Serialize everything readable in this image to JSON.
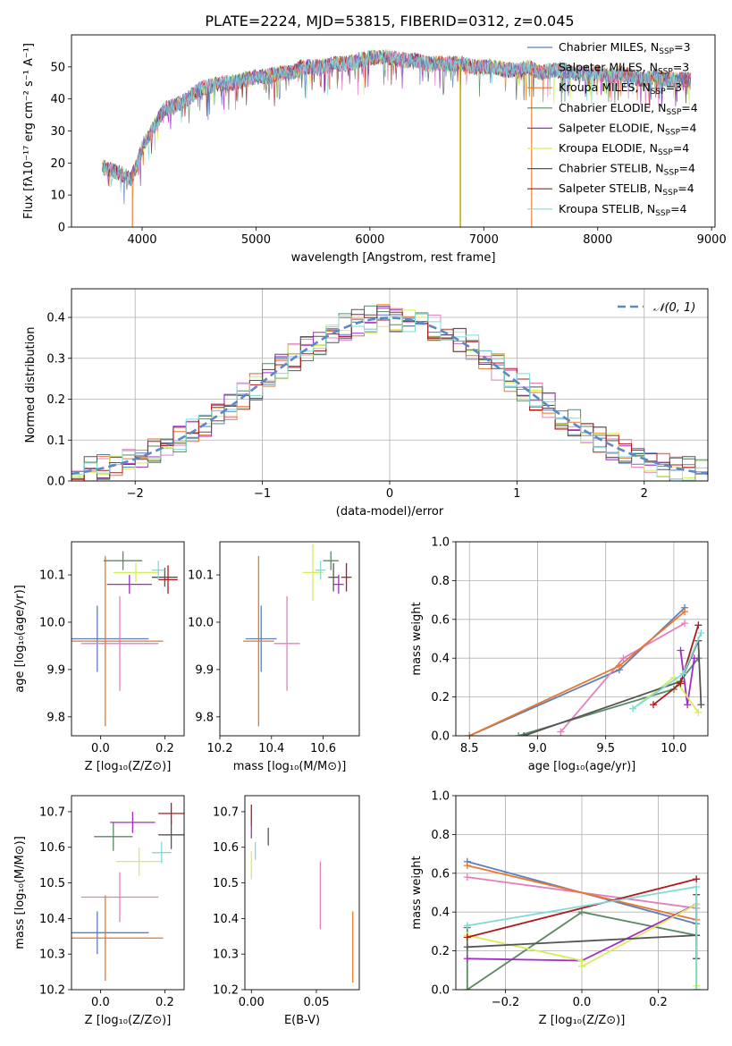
{
  "figure_title": "PLATE=2224, MJD=53815, FIBERID=0312, z=0.045",
  "model_colors": [
    "#5b7fbf",
    "#e47fbf",
    "#e8782a",
    "#5a8a63",
    "#a12dc4",
    "#d6ee5a",
    "#555555",
    "#b01a1a",
    "#7fdad8"
  ],
  "chart_data": [
    {
      "id": "spectrum",
      "type": "line",
      "xlabel": "wavelength [Angstrom, rest frame]",
      "ylabel": "Flux [fλ10⁻¹⁷ erg cm⁻² s⁻¹ A⁻¹]",
      "xlim": [
        3380,
        9030
      ],
      "ylim": [
        0,
        60
      ],
      "xticks": [
        4000,
        5000,
        6000,
        7000,
        8000,
        9000
      ],
      "yticks": [
        0,
        10,
        20,
        30,
        40,
        50
      ],
      "grid": false,
      "legend_position": "top-right",
      "legend": [
        {
          "name": "Chabrier MILES, N",
          "sub": "SSP",
          "tail": "=3",
          "color": "#5b7fbf"
        },
        {
          "name": "Salpeter MILES, N",
          "sub": "SSP",
          "tail": "=3",
          "color": "#e47fbf"
        },
        {
          "name": "Kroupa MILES, N",
          "sub": "SSP",
          "tail": "=3",
          "color": "#e8782a"
        },
        {
          "name": "Chabrier ELODIE, N",
          "sub": "SSP",
          "tail": "=4",
          "color": "#5a8a63"
        },
        {
          "name": "Salpeter ELODIE, N",
          "sub": "SSP",
          "tail": "=4",
          "color": "#a12dc4"
        },
        {
          "name": "Kroupa ELODIE, N",
          "sub": "SSP",
          "tail": "=4",
          "color": "#d6ee5a"
        },
        {
          "name": "Chabrier STELIB, N",
          "sub": "SSP",
          "tail": "=4",
          "color": "#555555"
        },
        {
          "name": "Salpeter STELIB, N",
          "sub": "SSP",
          "tail": "=4",
          "color": "#b01a1a"
        },
        {
          "name": "Kroupa STELIB, N",
          "sub": "SSP",
          "tail": "=4",
          "color": "#7fdad8"
        }
      ],
      "continuum": {
        "x": [
          3650,
          3700,
          3800,
          3900,
          3950,
          4000,
          4100,
          4200,
          4300,
          4400,
          4500,
          4600,
          4700,
          4800,
          4900,
          5000,
          5100,
          5200,
          5300,
          5400,
          5500,
          5600,
          5700,
          5800,
          5900,
          6000,
          6100,
          6200,
          6300,
          6400,
          6500,
          6600,
          6700,
          6800,
          6900,
          7000,
          7100,
          7200,
          7300,
          7400,
          7500,
          7600,
          7700,
          7800,
          7900,
          8000,
          8100,
          8200,
          8300,
          8400,
          8500,
          8600,
          8700,
          8800
        ],
        "y": [
          19,
          18,
          17,
          15,
          19,
          25,
          31,
          37,
          38,
          40,
          43,
          44,
          45,
          45,
          46,
          47,
          47,
          48,
          48,
          50,
          50,
          50,
          51,
          51,
          52,
          53,
          53,
          53,
          52,
          52,
          51,
          51,
          51,
          51,
          50,
          50,
          50,
          49,
          49,
          50,
          48,
          49,
          49,
          48,
          48,
          48,
          47,
          48,
          47,
          46,
          47,
          46,
          46,
          46
        ]
      },
      "dropouts": [
        {
          "x": 3915,
          "color": "#e8782a"
        },
        {
          "x": 6790,
          "color": "#d6ee5a"
        },
        {
          "x": 6795,
          "color": "#e8782a"
        },
        {
          "x": 7420,
          "color": "#e8782a"
        }
      ]
    },
    {
      "id": "residual-histogram",
      "type": "step",
      "xlabel": "(data-model)/error",
      "ylabel": "Normed distribution",
      "xlim": [
        -2.5,
        2.5
      ],
      "ylim": [
        0,
        0.47
      ],
      "xticks": [
        -2,
        -1,
        0,
        1,
        2
      ],
      "yticks": [
        0.0,
        0.1,
        0.2,
        0.3,
        0.4
      ],
      "grid": true,
      "legend_position": "top-right",
      "legend": [
        {
          "name": "𝒩(0, 1)",
          "color": "#5b88c8",
          "style": "dashed"
        }
      ],
      "bin_width": 0.1,
      "curve": "normal(0,1)"
    },
    {
      "id": "age-vs-Z",
      "type": "errorbar",
      "xlabel": "Z [log₁₀(Z/Z⊙)]",
      "ylabel": "age  [log₁₀(age/yr)]",
      "xlim": [
        -0.09,
        0.26
      ],
      "ylim": [
        9.76,
        10.17
      ],
      "xticks": [
        0.0,
        0.2
      ],
      "yticks": [
        9.8,
        9.9,
        10.0,
        10.1
      ],
      "points": [
        {
          "x": -0.01,
          "y": 9.965,
          "xerr": 0.16,
          "yerr": 0.07,
          "c": 0
        },
        {
          "x": 0.06,
          "y": 9.955,
          "xerr": 0.12,
          "yerr": 0.1,
          "c": 1
        },
        {
          "x": 0.015,
          "y": 9.96,
          "xerr": 0.18,
          "yerr": 0.18,
          "c": 2
        },
        {
          "x": 0.07,
          "y": 10.13,
          "xerr": 0.06,
          "yerr": 0.02,
          "c": 3
        },
        {
          "x": 0.09,
          "y": 10.08,
          "xerr": 0.07,
          "yerr": 0.02,
          "c": 4
        },
        {
          "x": 0.11,
          "y": 10.105,
          "xerr": 0.07,
          "yerr": 0.02,
          "c": 5
        },
        {
          "x": 0.2,
          "y": 10.095,
          "xerr": 0.04,
          "yerr": 0.02,
          "c": 6
        },
        {
          "x": 0.21,
          "y": 10.09,
          "xerr": 0.03,
          "yerr": 0.03,
          "c": 7
        },
        {
          "x": 0.18,
          "y": 10.11,
          "xerr": 0.02,
          "yerr": 0.02,
          "c": 8
        }
      ]
    },
    {
      "id": "age-vs-mass",
      "type": "errorbar",
      "xlabel": "mass [log₁₀(M/M⊙)]",
      "ylabel": "",
      "xlim": [
        10.2,
        10.74
      ],
      "ylim": [
        9.76,
        10.17
      ],
      "xticks": [
        10.2,
        10.4,
        10.6
      ],
      "yticks": [
        9.8,
        9.9,
        10.0,
        10.1
      ],
      "points": [
        {
          "x": 10.36,
          "y": 9.965,
          "xerr": 0.06,
          "yerr": 0.07,
          "c": 0
        },
        {
          "x": 10.46,
          "y": 9.955,
          "xerr": 0.05,
          "yerr": 0.1,
          "c": 1
        },
        {
          "x": 10.35,
          "y": 9.96,
          "xerr": 0.06,
          "yerr": 0.18,
          "c": 2
        },
        {
          "x": 10.63,
          "y": 10.13,
          "xerr": 0.03,
          "yerr": 0.02,
          "c": 3
        },
        {
          "x": 10.66,
          "y": 10.08,
          "xerr": 0.02,
          "yerr": 0.02,
          "c": 4
        },
        {
          "x": 10.56,
          "y": 10.105,
          "xerr": 0.04,
          "yerr": 0.06,
          "c": 5
        },
        {
          "x": 10.64,
          "y": 10.095,
          "xerr": 0.02,
          "yerr": 0.03,
          "c": 6
        },
        {
          "x": 10.69,
          "y": 10.095,
          "xerr": 0.02,
          "yerr": 0.03,
          "c": 7
        },
        {
          "x": 10.59,
          "y": 10.11,
          "xerr": 0.02,
          "yerr": 0.02,
          "c": 8
        }
      ]
    },
    {
      "id": "mass-weight-vs-age",
      "type": "line",
      "xlabel": "age  [log₁₀(age/yr)]",
      "ylabel": "mass weight",
      "xlim": [
        8.4,
        10.25
      ],
      "ylim": [
        0,
        1.0
      ],
      "xticks": [
        8.5,
        9.0,
        9.5,
        10.0
      ],
      "yticks": [
        0.0,
        0.2,
        0.4,
        0.6,
        0.8,
        1.0
      ],
      "grid": true,
      "series": [
        {
          "c": 0,
          "x": [
            8.5,
            9.6,
            10.08
          ],
          "y": [
            0.0,
            0.34,
            0.66
          ]
        },
        {
          "c": 1,
          "x": [
            9.17,
            9.63,
            10.08
          ],
          "y": [
            0.02,
            0.4,
            0.58
          ]
        },
        {
          "c": 2,
          "x": [
            8.5,
            9.6,
            10.08
          ],
          "y": [
            0.0,
            0.36,
            0.64
          ]
        },
        {
          "c": 3,
          "x": [
            8.86,
            10.0,
            10.18
          ],
          "y": [
            0.0,
            0.24,
            0.4
          ]
        },
        {
          "c": 4,
          "x": [
            10.05,
            10.1,
            10.15
          ],
          "y": [
            0.44,
            0.16,
            0.4
          ]
        },
        {
          "c": 5,
          "x": [
            9.7,
            10.0,
            10.18
          ],
          "y": [
            0.14,
            0.3,
            0.12
          ]
        },
        {
          "c": 6,
          "x": [
            8.9,
            10.05,
            10.18,
            10.2
          ],
          "y": [
            0.0,
            0.28,
            0.49,
            0.16
          ]
        },
        {
          "c": 7,
          "x": [
            9.85,
            10.05,
            10.18
          ],
          "y": [
            0.16,
            0.27,
            0.57
          ]
        },
        {
          "c": 8,
          "x": [
            9.7,
            10.07,
            10.2
          ],
          "y": [
            0.14,
            0.32,
            0.53
          ]
        }
      ]
    },
    {
      "id": "mass-vs-Z",
      "type": "errorbar",
      "xlabel": "Z [log₁₀(Z/Z⊙)]",
      "ylabel": "mass [log₁₀(M/M⊙)]",
      "xlim": [
        -0.09,
        0.26
      ],
      "ylim": [
        10.2,
        10.745
      ],
      "xticks": [
        0.0,
        0.2
      ],
      "yticks": [
        10.2,
        10.3,
        10.4,
        10.5,
        10.6,
        10.7
      ],
      "points": [
        {
          "x": -0.01,
          "y": 10.36,
          "xerr": 0.16,
          "yerr": 0.06,
          "c": 0
        },
        {
          "x": 0.06,
          "y": 10.46,
          "xerr": 0.12,
          "yerr": 0.07,
          "c": 1
        },
        {
          "x": 0.015,
          "y": 10.345,
          "xerr": 0.18,
          "yerr": 0.12,
          "c": 2
        },
        {
          "x": 0.04,
          "y": 10.63,
          "xerr": 0.06,
          "yerr": 0.04,
          "c": 3
        },
        {
          "x": 0.1,
          "y": 10.67,
          "xerr": 0.07,
          "yerr": 0.03,
          "c": 4
        },
        {
          "x": 0.12,
          "y": 10.56,
          "xerr": 0.07,
          "yerr": 0.04,
          "c": 5
        },
        {
          "x": 0.22,
          "y": 10.635,
          "xerr": 0.04,
          "yerr": 0.04,
          "c": 6
        },
        {
          "x": 0.22,
          "y": 10.695,
          "xerr": 0.04,
          "yerr": 0.03,
          "c": 7
        },
        {
          "x": 0.19,
          "y": 10.585,
          "xerr": 0.03,
          "yerr": 0.03,
          "c": 8
        }
      ]
    },
    {
      "id": "mass-vs-ebv",
      "type": "errorbar",
      "xlabel": "E(B-V)",
      "ylabel": "",
      "xlim": [
        -0.005,
        0.083
      ],
      "ylim": [
        10.2,
        10.745
      ],
      "xticks": [
        0.0,
        0.05
      ],
      "yticks": [
        10.2,
        10.3,
        10.4,
        10.5,
        10.6,
        10.7
      ],
      "points": [
        {
          "x": 0.078,
          "y": 10.32,
          "xerr": 0,
          "yerr": 0.1,
          "c": 2
        },
        {
          "x": 0.053,
          "y": 10.465,
          "xerr": 0,
          "yerr": 0.095,
          "c": 1
        },
        {
          "x": 0.013,
          "y": 10.63,
          "xerr": 0,
          "yerr": 0.025,
          "c": 6
        },
        {
          "x": 0.0,
          "y": 10.69,
          "xerr": 0,
          "yerr": 0.03,
          "c": 7
        },
        {
          "x": 0.0,
          "y": 10.645,
          "xerr": 0,
          "yerr": 0.02,
          "c": 4
        },
        {
          "x": 0.003,
          "y": 10.59,
          "xerr": 0,
          "yerr": 0.025,
          "c": 8
        },
        {
          "x": 0.0,
          "y": 10.55,
          "xerr": 0,
          "yerr": 0.04,
          "c": 5
        }
      ]
    },
    {
      "id": "mass-weight-vs-Z",
      "type": "line",
      "xlabel": "Z [log₁₀(Z/Z⊙)]",
      "ylabel": "mass weight",
      "xlim": [
        -0.33,
        0.33
      ],
      "ylim": [
        0,
        1.0
      ],
      "xticks": [
        -0.2,
        0.0,
        0.2
      ],
      "yticks": [
        0.0,
        0.2,
        0.4,
        0.6,
        0.8,
        1.0
      ],
      "grid": true,
      "series": [
        {
          "c": 0,
          "x": [
            -0.3,
            0.3
          ],
          "y": [
            0.66,
            0.34
          ]
        },
        {
          "c": 1,
          "x": [
            -0.3,
            0.3
          ],
          "y": [
            0.58,
            0.42
          ]
        },
        {
          "c": 2,
          "x": [
            -0.3,
            0.3
          ],
          "y": [
            0.64,
            0.36
          ]
        },
        {
          "c": 3,
          "x": [
            -0.3,
            -0.3,
            0.0,
            0.3,
            0.3
          ],
          "y": [
            0.32,
            0.0,
            0.4,
            0.28,
            0.0
          ]
        },
        {
          "c": 4,
          "x": [
            -0.3,
            0.0,
            0.3,
            0.3
          ],
          "y": [
            0.16,
            0.15,
            0.44,
            0.16
          ]
        },
        {
          "c": 5,
          "x": [
            -0.3,
            0.0,
            0.0,
            0.3,
            0.3
          ],
          "y": [
            0.28,
            0.15,
            0.12,
            0.44,
            0.02
          ]
        },
        {
          "c": 6,
          "x": [
            -0.3,
            0.3,
            0.3,
            0.3
          ],
          "y": [
            0.22,
            0.28,
            0.49,
            0.16
          ]
        },
        {
          "c": 7,
          "x": [
            -0.3,
            0.3
          ],
          "y": [
            0.27,
            0.57
          ]
        },
        {
          "c": 8,
          "x": [
            -0.3,
            0.3,
            0.3
          ],
          "y": [
            0.33,
            0.53,
            0.0
          ]
        }
      ]
    }
  ]
}
